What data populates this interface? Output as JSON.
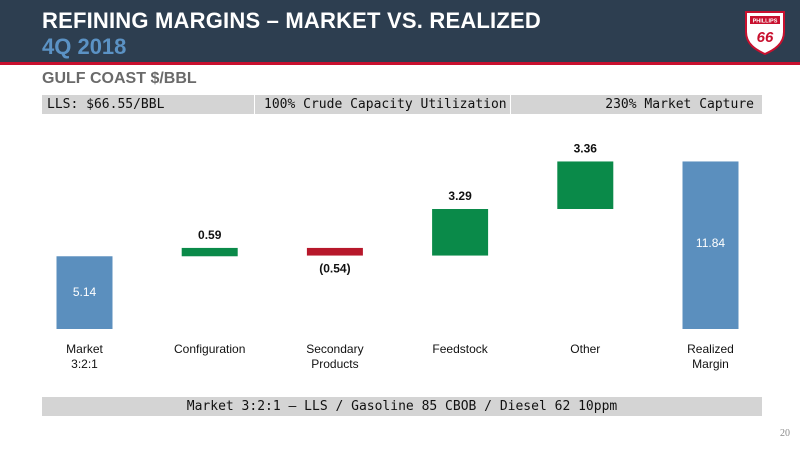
{
  "header": {
    "title": "REFINING MARGINS – MARKET VS. REALIZED",
    "subtitle": "4Q 2018",
    "logo_text": "PHILLIPS 66"
  },
  "section_label": "GULF COAST $/BBL",
  "info_bar": {
    "left": "LLS: $66.55/BBL",
    "center": "100% Crude Capacity Utilization",
    "right": "230% Market Capture"
  },
  "footer_note": "Market 3:2:1 – LLS / Gasoline 85 CBOB / Diesel 62 10ppm",
  "page_number": "20",
  "colors": {
    "total": "#5b8fbe",
    "increase": "#0a8a49",
    "decrease": "#b7182b",
    "header_bg": "#2d3e50",
    "accent_red": "#c8102e"
  },
  "chart_data": {
    "type": "bar",
    "subtype": "waterfall",
    "categories": [
      [
        "Market",
        "3:2:1"
      ],
      [
        "Configuration"
      ],
      [
        "Secondary",
        "Products"
      ],
      [
        "Feedstock"
      ],
      [
        "Other"
      ],
      [
        "Realized",
        "Margin"
      ]
    ],
    "values": [
      5.14,
      0.59,
      -0.54,
      3.29,
      3.36,
      11.84
    ],
    "labels": [
      "5.14",
      "0.59",
      "(0.54)",
      "3.29",
      "3.36",
      "11.84"
    ],
    "kinds": [
      "total",
      "increase",
      "decrease",
      "increase",
      "increase",
      "total"
    ],
    "ylim": [
      0,
      12.5
    ]
  }
}
